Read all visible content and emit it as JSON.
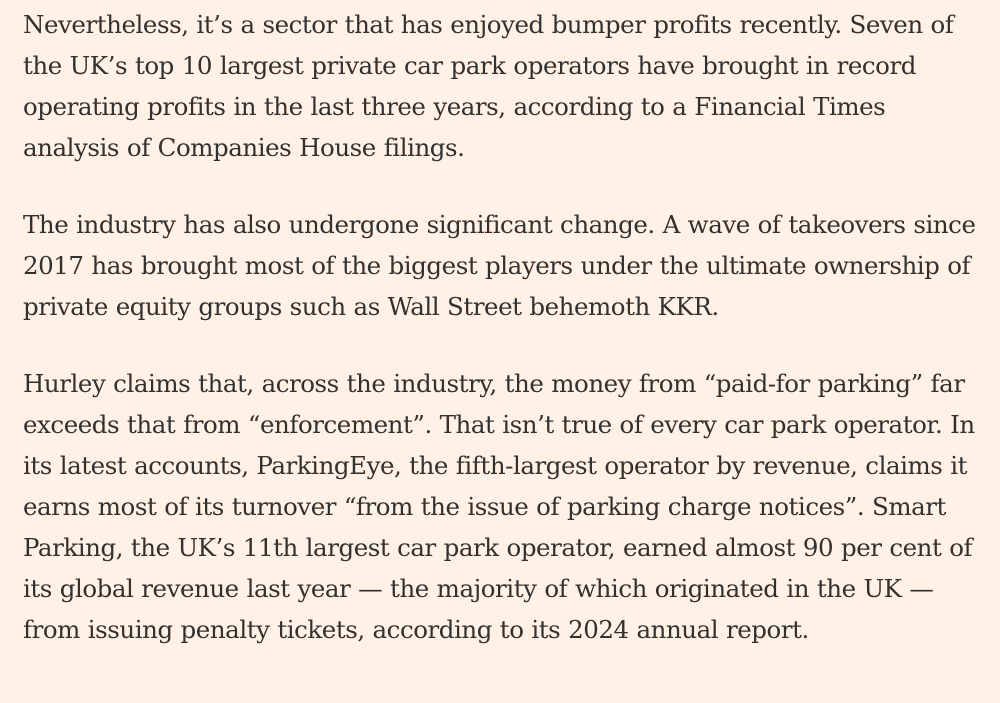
{
  "article": {
    "paragraphs": [
      "Nevertheless, it’s a sector that has enjoyed bumper profits recently. Seven of the UK’s top 10 largest private car park operators have brought in record operating profits in the last three years, according to a Financial Times analysis of Companies House filings.",
      "The industry has also undergone significant change. A wave of takeovers since 2017 has brought most of the biggest players under the ultimate ownership of private equity groups such as Wall Street behemoth KKR.",
      "Hurley claims that, across the industry, the money from “paid-for parking” far exceeds that from “enforcement”. That isn’t true of every car park operator. In its latest accounts, ParkingEye, the fifth-largest operator by revenue, claims it earns most of its turnover “from the issue of parking charge notices”. Smart Parking, the UK’s 11th largest car park operator, earned almost 90 per cent of its global revenue last year — the majority of which originated in the UK — from issuing penalty tickets, according to its 2024 annual report."
    ]
  },
  "colors": {
    "background": "#fff1e5",
    "text": "#33302e"
  }
}
